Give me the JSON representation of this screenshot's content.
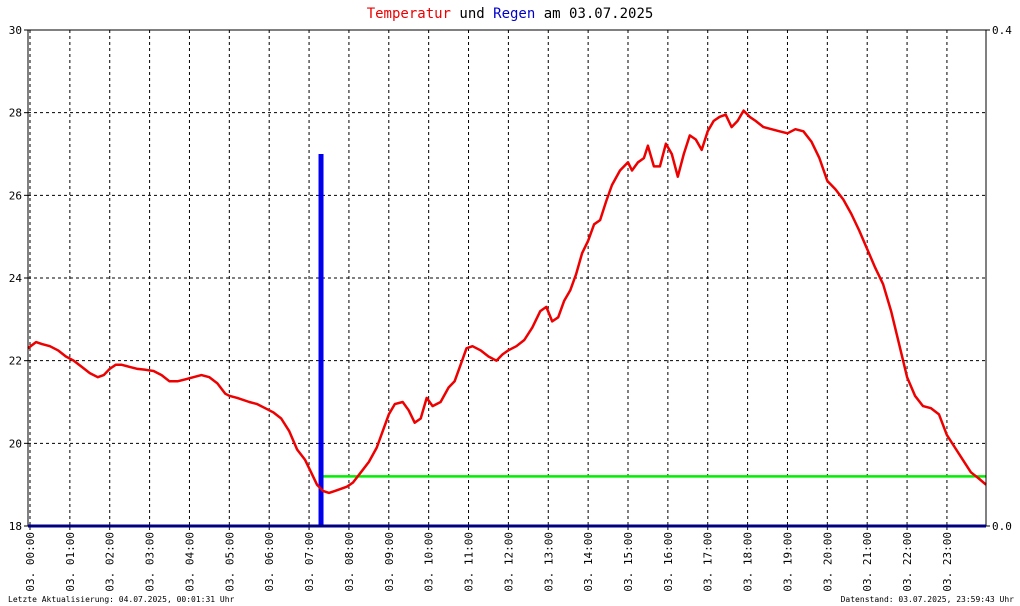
{
  "title": {
    "part1": "Temperatur",
    "part2": " und ",
    "part3": "Regen",
    "part4": " am 03.07.2025",
    "color1": "#ee0000",
    "color3": "#0000cc"
  },
  "footer": {
    "left": "Letzte Aktualisierung: 04.07.2025, 00:01:31 Uhr",
    "right": "Datenstand: 03.07.2025, 23:59:43 Uhr"
  },
  "chart_data": {
    "type": "line",
    "title": "Temperatur und Regen am 03.07.2025",
    "x_unit": "hours",
    "x_ticks": [
      {
        "h": 0,
        "label": "03. 00:00"
      },
      {
        "h": 1,
        "label": "03. 01:00"
      },
      {
        "h": 2,
        "label": "03. 02:00"
      },
      {
        "h": 3,
        "label": "03. 03:00"
      },
      {
        "h": 4,
        "label": "03. 04:00"
      },
      {
        "h": 5,
        "label": "03. 05:00"
      },
      {
        "h": 6,
        "label": "03. 06:00"
      },
      {
        "h": 7,
        "label": "03. 07:00"
      },
      {
        "h": 8,
        "label": "03. 08:00"
      },
      {
        "h": 9,
        "label": "03. 09:00"
      },
      {
        "h": 10,
        "label": "03. 10:00"
      },
      {
        "h": 11,
        "label": "03. 11:00"
      },
      {
        "h": 12,
        "label": "03. 12:00"
      },
      {
        "h": 13,
        "label": "03. 13:00"
      },
      {
        "h": 14,
        "label": "03. 14:00"
      },
      {
        "h": 15,
        "label": "03. 15:00"
      },
      {
        "h": 16,
        "label": "03. 16:00"
      },
      {
        "h": 17,
        "label": "03. 17:00"
      },
      {
        "h": 18,
        "label": "03. 18:00"
      },
      {
        "h": 19,
        "label": "03. 19:00"
      },
      {
        "h": 20,
        "label": "03. 20:00"
      },
      {
        "h": 21,
        "label": "03. 21:00"
      },
      {
        "h": 22,
        "label": "03. 22:00"
      },
      {
        "h": 23,
        "label": "03. 23:00"
      }
    ],
    "xlim": [
      -0.05,
      23.98
    ],
    "y_left": {
      "ylim": [
        18,
        30
      ],
      "ticks": [
        18,
        20,
        22,
        24,
        26,
        28,
        30
      ]
    },
    "y_right": {
      "ylim": [
        0,
        0.4
      ],
      "ticks": [
        {
          "v": 0,
          "label": "0.0"
        },
        {
          "v": 0.4,
          "label": "0.4"
        }
      ]
    },
    "grid": true,
    "colors": {
      "temperature": "#ee0000",
      "rain": "#0000ee",
      "level": "#00ee00",
      "axis": "#000080"
    },
    "series": [
      {
        "key": "temperature",
        "x": [
          -0.05,
          0.15,
          0.3,
          0.5,
          0.7,
          0.9,
          1.1,
          1.3,
          1.5,
          1.7,
          1.85,
          2.0,
          2.15,
          2.3,
          2.5,
          2.7,
          2.9,
          3.1,
          3.3,
          3.5,
          3.7,
          3.9,
          4.1,
          4.3,
          4.5,
          4.7,
          4.9,
          5.0,
          5.2,
          5.5,
          5.7,
          5.9,
          6.1,
          6.3,
          6.5,
          6.7,
          6.9,
          7.05,
          7.2,
          7.35,
          7.5,
          7.65,
          7.8,
          7.95,
          8.1,
          8.3,
          8.5,
          8.7,
          8.85,
          9.0,
          9.15,
          9.35,
          9.5,
          9.65,
          9.8,
          9.95,
          10.1,
          10.3,
          10.5,
          10.65,
          10.8,
          10.95,
          11.1,
          11.3,
          11.5,
          11.7,
          11.85,
          12.0,
          12.2,
          12.4,
          12.6,
          12.8,
          12.95,
          13.1,
          13.25,
          13.4,
          13.55,
          13.7,
          13.85,
          14.0,
          14.15,
          14.3,
          14.45,
          14.6,
          14.8,
          15.0,
          15.1,
          15.25,
          15.4,
          15.5,
          15.65,
          15.8,
          15.95,
          16.1,
          16.25,
          16.4,
          16.55,
          16.7,
          16.85,
          17.0,
          17.15,
          17.3,
          17.45,
          17.6,
          17.75,
          17.9,
          18.05,
          18.2,
          18.4,
          18.6,
          18.8,
          19.0,
          19.2,
          19.4,
          19.6,
          19.8,
          20.0,
          20.2,
          20.4,
          20.6,
          20.8,
          21.0,
          21.2,
          21.4,
          21.6,
          21.8,
          22.0,
          22.2,
          22.4,
          22.6,
          22.8,
          23.0,
          23.2,
          23.4,
          23.6,
          23.8,
          23.98
        ],
        "y": [
          22.3,
          22.45,
          22.4,
          22.35,
          22.25,
          22.1,
          22.0,
          21.85,
          21.7,
          21.6,
          21.65,
          21.8,
          21.9,
          21.9,
          21.85,
          21.8,
          21.78,
          21.75,
          21.65,
          21.5,
          21.5,
          21.55,
          21.6,
          21.65,
          21.6,
          21.45,
          21.2,
          21.15,
          21.1,
          21.0,
          20.95,
          20.85,
          20.75,
          20.6,
          20.3,
          19.85,
          19.6,
          19.3,
          19.0,
          18.85,
          18.8,
          18.85,
          18.9,
          18.95,
          19.05,
          19.3,
          19.55,
          19.9,
          20.3,
          20.7,
          20.95,
          21.0,
          20.8,
          20.5,
          20.6,
          21.1,
          20.9,
          21.0,
          21.35,
          21.5,
          21.9,
          22.3,
          22.35,
          22.25,
          22.1,
          22.0,
          22.15,
          22.25,
          22.35,
          22.5,
          22.8,
          23.2,
          23.3,
          22.95,
          23.05,
          23.45,
          23.7,
          24.1,
          24.6,
          24.9,
          25.3,
          25.4,
          25.85,
          26.25,
          26.6,
          26.8,
          26.6,
          26.8,
          26.9,
          27.2,
          26.7,
          26.7,
          27.25,
          27.0,
          26.45,
          27.0,
          27.45,
          27.35,
          27.1,
          27.55,
          27.8,
          27.9,
          27.95,
          27.65,
          27.8,
          28.05,
          27.9,
          27.8,
          27.65,
          27.6,
          27.55,
          27.5,
          27.6,
          27.55,
          27.3,
          26.9,
          26.35,
          26.15,
          25.9,
          25.55,
          25.15,
          24.7,
          24.25,
          23.85,
          23.2,
          22.4,
          21.6,
          21.15,
          20.9,
          20.85,
          20.7,
          20.2,
          19.9,
          19.6,
          19.3,
          19.15,
          19.0
        ]
      },
      {
        "key": "rain",
        "x": [
          7.3
        ],
        "y": [
          0.3
        ]
      },
      {
        "key": "level",
        "x": [
          7.3,
          23.98
        ],
        "y": [
          19.2,
          19.2
        ]
      }
    ]
  }
}
